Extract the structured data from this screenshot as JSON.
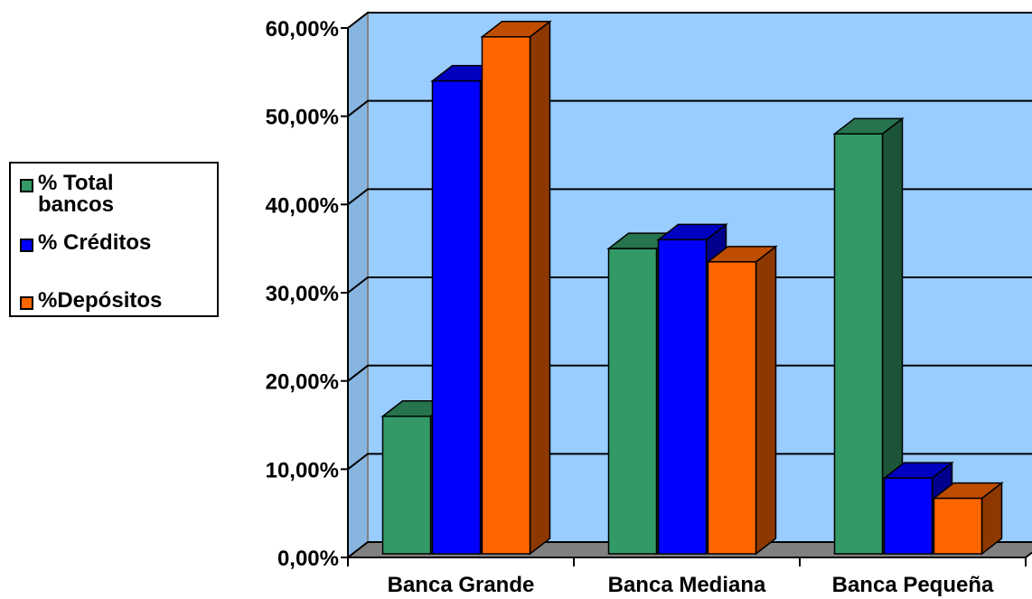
{
  "chart_data": {
    "type": "bar",
    "categories": [
      "Banca Grande",
      "Banca Mediana",
      "Banca Pequeña"
    ],
    "series": [
      {
        "name": "% Total bancos",
        "values": [
          0.16,
          0.35,
          0.48
        ],
        "color": "#339966"
      },
      {
        "name": "% Créditos",
        "values": [
          0.54,
          0.36,
          0.09
        ],
        "color": "#0000ff"
      },
      {
        "name": "%Depósitos",
        "values": [
          0.59,
          0.335,
          0.067
        ],
        "color": "#ff6600"
      }
    ],
    "y_ticks": [
      "0,00%",
      "10,00%",
      "20,00%",
      "30,00%",
      "40,00%",
      "50,00%",
      "60,00%"
    ],
    "ylim": [
      0,
      0.6
    ],
    "legend": {
      "position": "left"
    },
    "grid": true,
    "plot_background": "#99ccff",
    "floor_color": "#808080"
  }
}
